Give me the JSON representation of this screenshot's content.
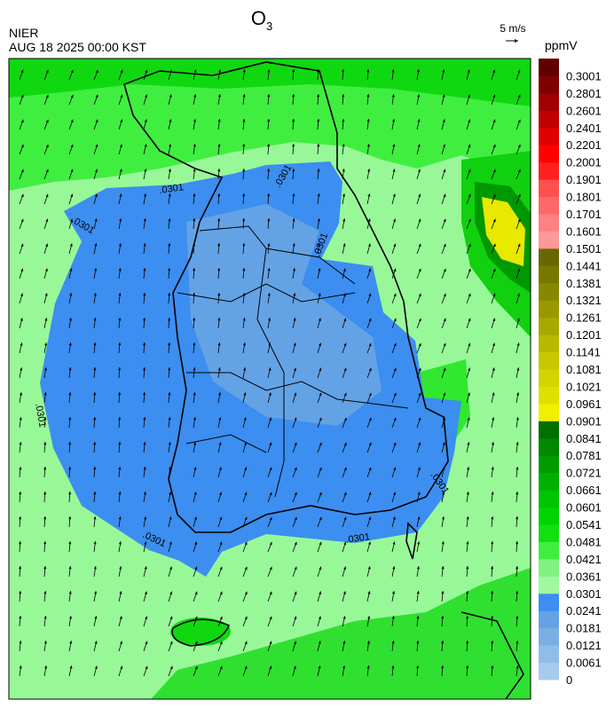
{
  "header": {
    "title": "O",
    "title_subscript": "3",
    "agency": "NIER",
    "timestamp": "AUG 18 2025 00:00 KST",
    "wind_scale": "5 m/s"
  },
  "map": {
    "contour_labels": [
      ".0301",
      ".0301",
      ".0301",
      ".0301",
      ".0301",
      ".0301",
      ".0301",
      ".0301"
    ]
  },
  "colorbar": {
    "unit": "ppmV",
    "levels": [
      {
        "value": 0,
        "color": "#a6cbec"
      },
      {
        "value": 0.0061,
        "color": "#90bde8"
      },
      {
        "value": 0.0121,
        "color": "#7aafe6"
      },
      {
        "value": 0.0181,
        "color": "#64a2e6"
      },
      {
        "value": 0.0241,
        "color": "#3c8ef0"
      },
      {
        "value": 0.0301,
        "color": "#a0f8a0"
      },
      {
        "value": 0.0361,
        "color": "#80f280"
      },
      {
        "value": 0.0421,
        "color": "#40ee40"
      },
      {
        "value": 0.0481,
        "color": "#10e010"
      },
      {
        "value": 0.0541,
        "color": "#00d400"
      },
      {
        "value": 0.0601,
        "color": "#00c400"
      },
      {
        "value": 0.0661,
        "color": "#00b000"
      },
      {
        "value": 0.0721,
        "color": "#009c00"
      },
      {
        "value": 0.0781,
        "color": "#008800"
      },
      {
        "value": 0.0841,
        "color": "#007000"
      },
      {
        "value": 0.0901,
        "color": "#f0f000"
      },
      {
        "value": 0.0961,
        "color": "#e0e000"
      },
      {
        "value": 0.1021,
        "color": "#d4d400"
      },
      {
        "value": 0.1081,
        "color": "#c8c800"
      },
      {
        "value": 0.1141,
        "color": "#b8b800"
      },
      {
        "value": 0.1201,
        "color": "#a8a800"
      },
      {
        "value": 0.1261,
        "color": "#989800"
      },
      {
        "value": 0.1321,
        "color": "#888800"
      },
      {
        "value": 0.1381,
        "color": "#787800"
      },
      {
        "value": 0.1441,
        "color": "#686800"
      },
      {
        "value": 0.1501,
        "color": "#ff9898"
      },
      {
        "value": 0.1601,
        "color": "#ff8080"
      },
      {
        "value": 0.1701,
        "color": "#ff6868"
      },
      {
        "value": 0.1801,
        "color": "#ff5050"
      },
      {
        "value": 0.1901,
        "color": "#ff2020"
      },
      {
        "value": 0.2001,
        "color": "#ff0000"
      },
      {
        "value": 0.2201,
        "color": "#e00000"
      },
      {
        "value": 0.2401,
        "color": "#c00000"
      },
      {
        "value": 0.2601,
        "color": "#a00000"
      },
      {
        "value": 0.2801,
        "color": "#800000"
      },
      {
        "value": 0.3001,
        "color": "#600000"
      }
    ]
  }
}
